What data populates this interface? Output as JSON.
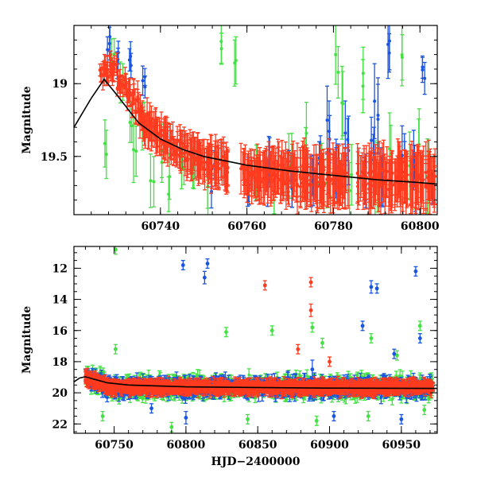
{
  "chart_data": [
    {
      "type": "scatter",
      "panel": "top",
      "title": "",
      "xlabel": "",
      "ylabel": "Magnitude",
      "xlim": [
        60720,
        60804
      ],
      "ylim": [
        19.9,
        18.6
      ],
      "y_inverted": true,
      "xticks": [
        60740,
        60760,
        60780,
        60800
      ],
      "xtick_labels": [
        "60740",
        "60760",
        "60780",
        "60800"
      ],
      "yticks": [
        19,
        19.5
      ],
      "ytick_labels": [
        "19",
        "19.5"
      ],
      "colors": {
        "red": "#ff3b1f",
        "green": "#44e044",
        "blue": "#1a55e0",
        "curve": "#000000"
      },
      "model_curve": {
        "x": [
          60720,
          60724,
          60727,
          60730,
          60735,
          60740,
          60745,
          60750,
          60755,
          60760,
          60770,
          60780,
          60790,
          60800,
          60804
        ],
        "y": [
          19.3,
          19.1,
          18.97,
          19.08,
          19.27,
          19.38,
          19.45,
          19.5,
          19.53,
          19.56,
          19.6,
          19.63,
          19.66,
          19.68,
          19.69
        ]
      },
      "series": [
        {
          "name": "red",
          "points": [
            [
              60726.5,
              18.95,
              0.05
            ],
            [
              60727.5,
              18.92,
              0.07
            ],
            [
              60728.5,
              18.88,
              0.06
            ],
            [
              60729.5,
              18.9,
              0.06
            ],
            [
              60730.5,
              18.98,
              0.05
            ],
            [
              60731.5,
              19.02,
              0.07
            ],
            [
              60732.5,
              19.05,
              0.08
            ],
            [
              60733.5,
              19.1,
              0.08
            ],
            [
              60734.5,
              19.15,
              0.09
            ],
            [
              60735.5,
              19.22,
              0.09
            ],
            [
              60736.5,
              19.27,
              0.09
            ],
            [
              60737.5,
              19.3,
              0.1
            ],
            [
              60738.5,
              19.33,
              0.1
            ],
            [
              60739.5,
              19.36,
              0.1
            ],
            [
              60740.5,
              19.38,
              0.1
            ],
            [
              60741.5,
              19.4,
              0.11
            ],
            [
              60742.5,
              19.42,
              0.11
            ],
            [
              60743.5,
              19.44,
              0.11
            ],
            [
              60744.5,
              19.45,
              0.11
            ],
            [
              60745.5,
              19.47,
              0.12
            ],
            [
              60746.5,
              19.48,
              0.12
            ],
            [
              60747.5,
              19.5,
              0.12
            ],
            [
              60748.5,
              19.5,
              0.12
            ],
            [
              60749.5,
              19.52,
              0.12
            ],
            [
              60750.5,
              19.53,
              0.12
            ],
            [
              60751.5,
              19.54,
              0.13
            ],
            [
              60752.5,
              19.55,
              0.13
            ],
            [
              60753.5,
              19.56,
              0.13
            ],
            [
              60754.5,
              19.56,
              0.13
            ],
            [
              60755.5,
              19.57,
              0.13
            ],
            [
              60759,
              19.6,
              0.14
            ],
            [
              60760,
              19.62,
              0.14
            ],
            [
              60761,
              19.61,
              0.14
            ],
            [
              60762,
              19.62,
              0.14
            ],
            [
              60763,
              19.63,
              0.14
            ],
            [
              60764,
              19.6,
              0.15
            ],
            [
              60765,
              19.62,
              0.15
            ],
            [
              60766,
              19.64,
              0.15
            ],
            [
              60767,
              19.62,
              0.15
            ],
            [
              60768,
              19.63,
              0.15
            ],
            [
              60769,
              19.64,
              0.15
            ],
            [
              60770,
              19.62,
              0.15
            ],
            [
              60771,
              19.64,
              0.15
            ],
            [
              60772,
              19.65,
              0.16
            ],
            [
              60773,
              19.63,
              0.16
            ],
            [
              60774,
              19.64,
              0.16
            ],
            [
              60775,
              19.65,
              0.16
            ],
            [
              60776,
              19.66,
              0.16
            ],
            [
              60777,
              19.64,
              0.16
            ],
            [
              60778,
              19.65,
              0.16
            ],
            [
              60779,
              19.62,
              0.17
            ],
            [
              60780,
              19.64,
              0.17
            ],
            [
              60781,
              19.66,
              0.17
            ],
            [
              60782,
              19.65,
              0.17
            ],
            [
              60783,
              19.66,
              0.17
            ],
            [
              60786,
              19.66,
              0.17
            ],
            [
              60787,
              19.65,
              0.17
            ],
            [
              60788,
              19.67,
              0.17
            ],
            [
              60789,
              19.65,
              0.17
            ],
            [
              60790,
              19.66,
              0.17
            ],
            [
              60791,
              19.64,
              0.17
            ],
            [
              60792,
              19.66,
              0.17
            ],
            [
              60793,
              19.67,
              0.17
            ],
            [
              60794,
              19.66,
              0.17
            ],
            [
              60795,
              19.65,
              0.17
            ],
            [
              60796,
              19.67,
              0.17
            ],
            [
              60797,
              19.66,
              0.18
            ],
            [
              60798,
              19.65,
              0.18
            ],
            [
              60799,
              19.66,
              0.18
            ],
            [
              60800,
              19.67,
              0.18
            ],
            [
              60801,
              19.66,
              0.18
            ],
            [
              60802,
              19.65,
              0.18
            ],
            [
              60803,
              19.67,
              0.18
            ]
          ]
        },
        {
          "name": "green",
          "points": [
            [
              60727,
              19.45,
              0.15
            ],
            [
              60729,
              18.75,
              0.12
            ],
            [
              60731,
              19.05,
              0.12
            ],
            [
              60733,
              19.22,
              0.15
            ],
            [
              60734,
              19.48,
              0.18
            ],
            [
              60736,
              19.32,
              0.16
            ],
            [
              60738,
              19.68,
              0.15
            ],
            [
              60740,
              19.5,
              0.18
            ],
            [
              60742,
              19.72,
              0.14
            ],
            [
              60745,
              19.6,
              0.15
            ],
            [
              60748,
              19.62,
              0.16
            ],
            [
              60751,
              19.7,
              0.18
            ],
            [
              60754,
              18.72,
              0.15
            ],
            [
              60757,
              18.9,
              0.16
            ],
            [
              60762,
              19.58,
              0.2
            ],
            [
              60766,
              19.7,
              0.18
            ],
            [
              60770,
              19.55,
              0.2
            ],
            [
              60774,
              19.35,
              0.18
            ],
            [
              60777,
              19.62,
              0.2
            ],
            [
              60779,
              19.72,
              0.15
            ],
            [
              60781,
              18.85,
              0.2
            ],
            [
              60782,
              19.1,
              0.2
            ],
            [
              60784,
              19.7,
              0.2
            ],
            [
              60787,
              18.98,
              0.2
            ],
            [
              60790,
              19.64,
              0.2
            ],
            [
              60793,
              19.52,
              0.2
            ],
            [
              60796,
              18.9,
              0.2
            ],
            [
              60798,
              19.64,
              0.2
            ],
            [
              60800,
              19.5,
              0.2
            ],
            [
              60802,
              19.62,
              0.2
            ]
          ]
        },
        {
          "name": "blue",
          "points": [
            [
              60728,
              18.72,
              0.1
            ],
            [
              60730,
              18.88,
              0.1
            ],
            [
              60733,
              18.85,
              0.08
            ],
            [
              60736,
              19.0,
              0.08
            ],
            [
              60752,
              19.65,
              0.1
            ],
            [
              60760,
              19.64,
              0.14
            ],
            [
              60765,
              19.62,
              0.14
            ],
            [
              60770,
              19.66,
              0.15
            ],
            [
              60775,
              19.6,
              0.15
            ],
            [
              60777,
              19.58,
              0.15
            ],
            [
              60779,
              19.3,
              0.2
            ],
            [
              60781,
              19.55,
              0.18
            ],
            [
              60783,
              19.4,
              0.2
            ],
            [
              60787,
              19.66,
              0.16
            ],
            [
              60789,
              19.48,
              0.2
            ],
            [
              60790,
              19.2,
              0.2
            ],
            [
              60791,
              19.64,
              0.16
            ],
            [
              60793,
              18.8,
              0.18
            ],
            [
              60796,
              19.55,
              0.18
            ],
            [
              60799,
              19.62,
              0.17
            ],
            [
              60801,
              18.95,
              0.1
            ],
            [
              60803,
              19.64,
              0.15
            ]
          ]
        }
      ]
    },
    {
      "type": "scatter",
      "panel": "bottom",
      "title": "",
      "xlabel": "HJD−2400000",
      "ylabel": "Magnitude",
      "xlim": [
        60722,
        60975
      ],
      "ylim": [
        22.6,
        10.6
      ],
      "y_inverted": true,
      "xticks": [
        60750,
        60800,
        60850,
        60900,
        60950
      ],
      "xtick_labels": [
        "60750",
        "60800",
        "60850",
        "60900",
        "60950"
      ],
      "yticks": [
        12,
        14,
        16,
        18,
        20,
        22
      ],
      "ytick_labels": [
        "12",
        "14",
        "16",
        "18",
        "20",
        "22"
      ],
      "colors": {
        "red": "#ff3b1f",
        "green": "#44e044",
        "blue": "#1a55e0",
        "curve": "#000000"
      },
      "model_curve": {
        "x": [
          60722,
          60726,
          60730,
          60735,
          60745,
          60760,
          60800,
          60850,
          60900,
          60975
        ],
        "y": [
          19.3,
          19.05,
          18.97,
          19.1,
          19.35,
          19.5,
          19.62,
          19.66,
          19.7,
          19.72
        ]
      },
      "outliers": {
        "red": [
          [
            60855,
            13.1,
            0.3
          ],
          [
            60887,
            12.9,
            0.3
          ],
          [
            60887,
            14.7,
            0.4
          ],
          [
            60878,
            17.2,
            0.3
          ],
          [
            60900,
            18.0,
            0.3
          ]
        ],
        "green": [
          [
            60751,
            10.8,
            0.3
          ],
          [
            60751,
            17.2,
            0.3
          ],
          [
            60828,
            16.1,
            0.3
          ],
          [
            60860,
            16.0,
            0.3
          ],
          [
            60888,
            15.8,
            0.3
          ],
          [
            60895,
            16.8,
            0.3
          ],
          [
            60929,
            16.5,
            0.3
          ],
          [
            60947,
            17.6,
            0.3
          ],
          [
            60963,
            15.7,
            0.3
          ],
          [
            60742,
            21.5,
            0.3
          ],
          [
            60790,
            22.2,
            0.3
          ],
          [
            60843,
            21.7,
            0.3
          ],
          [
            60891,
            21.8,
            0.3
          ],
          [
            60927,
            21.5,
            0.3
          ],
          [
            60966,
            21.1,
            0.3
          ]
        ],
        "blue": [
          [
            60798,
            11.8,
            0.3
          ],
          [
            60813,
            12.6,
            0.4
          ],
          [
            60815,
            11.7,
            0.3
          ],
          [
            60929,
            13.2,
            0.4
          ],
          [
            60933,
            13.3,
            0.3
          ],
          [
            60923,
            15.7,
            0.3
          ],
          [
            60960,
            12.2,
            0.3
          ],
          [
            60963,
            16.5,
            0.3
          ],
          [
            60945,
            17.5,
            0.3
          ],
          [
            60888,
            18.5,
            0.6
          ],
          [
            60776,
            21.0,
            0.3
          ],
          [
            60800,
            21.6,
            0.4
          ],
          [
            60903,
            21.5,
            0.3
          ],
          [
            60950,
            21.7,
            0.3
          ]
        ]
      }
    }
  ]
}
